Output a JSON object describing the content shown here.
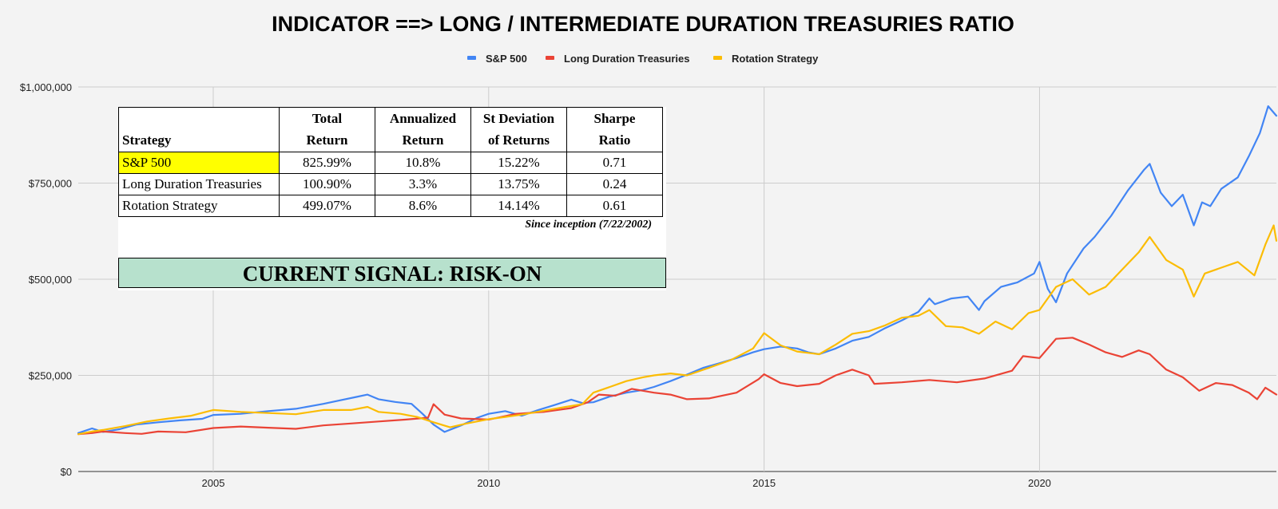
{
  "chart_data": {
    "type": "line",
    "title": "INDICATOR ==> LONG / INTERMEDIATE DURATION TREASURIES RATIO",
    "xlabel": "",
    "ylabel": "",
    "xlim": [
      2002.55,
      2024.3
    ],
    "ylim": [
      0,
      1000000
    ],
    "x_ticks": [
      2005,
      2010,
      2015,
      2020
    ],
    "y_ticks": [
      0,
      250000,
      500000,
      750000,
      1000000
    ],
    "y_tick_labels": [
      "$0",
      "$250,000",
      "$500,000",
      "$750,000",
      "$1,000,000"
    ],
    "grid": true,
    "legend_position": "top",
    "series": [
      {
        "name": "S&P 500",
        "color": "#4285f4",
        "points": [
          [
            2002.55,
            100000
          ],
          [
            2002.8,
            112000
          ],
          [
            2003.0,
            103000
          ],
          [
            2003.3,
            110000
          ],
          [
            2003.6,
            122000
          ],
          [
            2004.0,
            128000
          ],
          [
            2004.4,
            133000
          ],
          [
            2004.8,
            137000
          ],
          [
            2005.0,
            147000
          ],
          [
            2005.5,
            150000
          ],
          [
            2006.0,
            157000
          ],
          [
            2006.5,
            163000
          ],
          [
            2007.0,
            176000
          ],
          [
            2007.3,
            185000
          ],
          [
            2007.6,
            194000
          ],
          [
            2007.8,
            200000
          ],
          [
            2008.0,
            188000
          ],
          [
            2008.3,
            181000
          ],
          [
            2008.6,
            176000
          ],
          [
            2008.8,
            150000
          ],
          [
            2009.0,
            122000
          ],
          [
            2009.2,
            103000
          ],
          [
            2009.5,
            120000
          ],
          [
            2009.8,
            140000
          ],
          [
            2010.0,
            150000
          ],
          [
            2010.3,
            157000
          ],
          [
            2010.6,
            145000
          ],
          [
            2010.9,
            160000
          ],
          [
            2011.2,
            173000
          ],
          [
            2011.5,
            187000
          ],
          [
            2011.7,
            178000
          ],
          [
            2011.9,
            180000
          ],
          [
            2012.2,
            195000
          ],
          [
            2012.5,
            205000
          ],
          [
            2012.8,
            212000
          ],
          [
            2013.0,
            220000
          ],
          [
            2013.3,
            235000
          ],
          [
            2013.6,
            252000
          ],
          [
            2013.9,
            270000
          ],
          [
            2014.2,
            282000
          ],
          [
            2014.5,
            295000
          ],
          [
            2014.8,
            310000
          ],
          [
            2015.0,
            318000
          ],
          [
            2015.3,
            325000
          ],
          [
            2015.6,
            320000
          ],
          [
            2015.8,
            310000
          ],
          [
            2016.0,
            305000
          ],
          [
            2016.3,
            320000
          ],
          [
            2016.6,
            340000
          ],
          [
            2016.9,
            350000
          ],
          [
            2017.2,
            373000
          ],
          [
            2017.5,
            393000
          ],
          [
            2017.8,
            415000
          ],
          [
            2018.0,
            450000
          ],
          [
            2018.1,
            435000
          ],
          [
            2018.4,
            450000
          ],
          [
            2018.7,
            455000
          ],
          [
            2018.9,
            420000
          ],
          [
            2019.0,
            443000
          ],
          [
            2019.3,
            480000
          ],
          [
            2019.6,
            492000
          ],
          [
            2019.9,
            515000
          ],
          [
            2020.0,
            545000
          ],
          [
            2020.15,
            475000
          ],
          [
            2020.3,
            440000
          ],
          [
            2020.5,
            515000
          ],
          [
            2020.8,
            580000
          ],
          [
            2021.0,
            610000
          ],
          [
            2021.3,
            665000
          ],
          [
            2021.6,
            730000
          ],
          [
            2021.9,
            785000
          ],
          [
            2022.0,
            800000
          ],
          [
            2022.2,
            725000
          ],
          [
            2022.4,
            690000
          ],
          [
            2022.6,
            720000
          ],
          [
            2022.8,
            640000
          ],
          [
            2022.95,
            700000
          ],
          [
            2023.1,
            690000
          ],
          [
            2023.3,
            735000
          ],
          [
            2023.6,
            765000
          ],
          [
            2023.8,
            820000
          ],
          [
            2024.0,
            880000
          ],
          [
            2024.15,
            950000
          ],
          [
            2024.3,
            925000
          ]
        ]
      },
      {
        "name": "Long Duration Treasuries",
        "color": "#ea4335",
        "points": [
          [
            2002.55,
            97000
          ],
          [
            2002.8,
            100000
          ],
          [
            2003.0,
            104000
          ],
          [
            2003.4,
            100000
          ],
          [
            2003.7,
            98000
          ],
          [
            2004.0,
            104000
          ],
          [
            2004.5,
            102000
          ],
          [
            2005.0,
            113000
          ],
          [
            2005.5,
            117000
          ],
          [
            2006.0,
            114000
          ],
          [
            2006.5,
            111000
          ],
          [
            2007.0,
            120000
          ],
          [
            2007.5,
            125000
          ],
          [
            2008.0,
            130000
          ],
          [
            2008.5,
            135000
          ],
          [
            2008.9,
            140000
          ],
          [
            2009.0,
            175000
          ],
          [
            2009.2,
            148000
          ],
          [
            2009.5,
            138000
          ],
          [
            2010.0,
            135000
          ],
          [
            2010.5,
            150000
          ],
          [
            2011.0,
            155000
          ],
          [
            2011.5,
            165000
          ],
          [
            2011.8,
            180000
          ],
          [
            2012.0,
            200000
          ],
          [
            2012.3,
            197000
          ],
          [
            2012.6,
            215000
          ],
          [
            2013.0,
            205000
          ],
          [
            2013.3,
            200000
          ],
          [
            2013.6,
            188000
          ],
          [
            2014.0,
            190000
          ],
          [
            2014.5,
            205000
          ],
          [
            2014.9,
            240000
          ],
          [
            2015.0,
            253000
          ],
          [
            2015.3,
            230000
          ],
          [
            2015.6,
            222000
          ],
          [
            2016.0,
            228000
          ],
          [
            2016.3,
            250000
          ],
          [
            2016.6,
            265000
          ],
          [
            2016.9,
            250000
          ],
          [
            2017.0,
            228000
          ],
          [
            2017.5,
            232000
          ],
          [
            2018.0,
            238000
          ],
          [
            2018.5,
            232000
          ],
          [
            2019.0,
            242000
          ],
          [
            2019.5,
            262000
          ],
          [
            2019.7,
            300000
          ],
          [
            2020.0,
            295000
          ],
          [
            2020.3,
            345000
          ],
          [
            2020.6,
            348000
          ],
          [
            2020.9,
            330000
          ],
          [
            2021.2,
            310000
          ],
          [
            2021.5,
            298000
          ],
          [
            2021.8,
            315000
          ],
          [
            2022.0,
            305000
          ],
          [
            2022.3,
            265000
          ],
          [
            2022.6,
            245000
          ],
          [
            2022.9,
            210000
          ],
          [
            2023.2,
            230000
          ],
          [
            2023.5,
            225000
          ],
          [
            2023.8,
            205000
          ],
          [
            2023.95,
            188000
          ],
          [
            2024.1,
            218000
          ],
          [
            2024.3,
            200000
          ]
        ]
      },
      {
        "name": "Rotation Strategy",
        "color": "#fbbc04",
        "points": [
          [
            2002.55,
            97000
          ],
          [
            2002.8,
            104000
          ],
          [
            2003.0,
            108000
          ],
          [
            2003.4,
            118000
          ],
          [
            2003.8,
            130000
          ],
          [
            2004.2,
            138000
          ],
          [
            2004.6,
            145000
          ],
          [
            2005.0,
            160000
          ],
          [
            2005.5,
            155000
          ],
          [
            2006.0,
            152000
          ],
          [
            2006.5,
            149000
          ],
          [
            2007.0,
            160000
          ],
          [
            2007.5,
            160000
          ],
          [
            2007.8,
            168000
          ],
          [
            2008.0,
            155000
          ],
          [
            2008.4,
            150000
          ],
          [
            2008.7,
            142000
          ],
          [
            2009.0,
            128000
          ],
          [
            2009.3,
            115000
          ],
          [
            2009.6,
            125000
          ],
          [
            2010.0,
            136000
          ],
          [
            2010.3,
            142000
          ],
          [
            2010.6,
            148000
          ],
          [
            2011.0,
            158000
          ],
          [
            2011.4,
            168000
          ],
          [
            2011.7,
            175000
          ],
          [
            2011.9,
            205000
          ],
          [
            2012.2,
            220000
          ],
          [
            2012.5,
            235000
          ],
          [
            2012.8,
            245000
          ],
          [
            2013.0,
            250000
          ],
          [
            2013.3,
            255000
          ],
          [
            2013.6,
            250000
          ],
          [
            2014.0,
            270000
          ],
          [
            2014.4,
            290000
          ],
          [
            2014.8,
            320000
          ],
          [
            2015.0,
            360000
          ],
          [
            2015.3,
            328000
          ],
          [
            2015.6,
            312000
          ],
          [
            2016.0,
            305000
          ],
          [
            2016.3,
            330000
          ],
          [
            2016.6,
            358000
          ],
          [
            2016.9,
            365000
          ],
          [
            2017.2,
            380000
          ],
          [
            2017.5,
            400000
          ],
          [
            2017.8,
            405000
          ],
          [
            2018.0,
            420000
          ],
          [
            2018.3,
            378000
          ],
          [
            2018.6,
            375000
          ],
          [
            2018.9,
            358000
          ],
          [
            2019.2,
            390000
          ],
          [
            2019.5,
            370000
          ],
          [
            2019.8,
            412000
          ],
          [
            2020.0,
            420000
          ],
          [
            2020.3,
            480000
          ],
          [
            2020.6,
            500000
          ],
          [
            2020.9,
            460000
          ],
          [
            2021.2,
            480000
          ],
          [
            2021.5,
            525000
          ],
          [
            2021.8,
            570000
          ],
          [
            2022.0,
            610000
          ],
          [
            2022.3,
            550000
          ],
          [
            2022.6,
            525000
          ],
          [
            2022.8,
            455000
          ],
          [
            2023.0,
            515000
          ],
          [
            2023.3,
            530000
          ],
          [
            2023.6,
            545000
          ],
          [
            2023.9,
            510000
          ],
          [
            2024.1,
            590000
          ],
          [
            2024.25,
            640000
          ],
          [
            2024.3,
            600000
          ]
        ]
      }
    ]
  },
  "table": {
    "headers": [
      [
        "Strategy"
      ],
      [
        "Total",
        "Return"
      ],
      [
        "Annualized",
        "Return"
      ],
      [
        "St Deviation",
        "of Returns"
      ],
      [
        "Sharpe",
        "Ratio"
      ]
    ],
    "rows": [
      {
        "strategy": "S&P 500",
        "total_return": "825.99%",
        "annualized_return": "10.8%",
        "st_deviation": "15.22%",
        "sharpe_ratio": "0.71",
        "highlight_color": "#ffff00"
      },
      {
        "strategy": "Long Duration Treasuries",
        "total_return": "100.90%",
        "annualized_return": "3.3%",
        "st_deviation": "13.75%",
        "sharpe_ratio": "0.24"
      },
      {
        "strategy": "Rotation Strategy",
        "total_return": "499.07%",
        "annualized_return": "8.6%",
        "st_deviation": "14.14%",
        "sharpe_ratio": "0.61"
      }
    ],
    "footnote": "Since inception (7/22/2002)"
  },
  "signal": {
    "text": "CURRENT SIGNAL: RISK-ON",
    "background_color": "#b7e1cd"
  }
}
